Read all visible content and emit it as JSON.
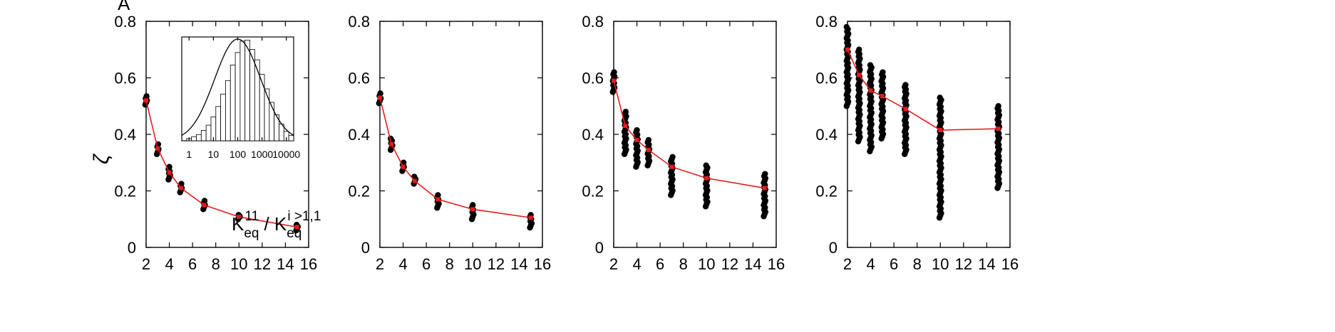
{
  "panel_letter": "A",
  "y_axis_label": "ζ",
  "colors": {
    "points": "#000000",
    "mean_line": "#e41a1c",
    "inset_bars": "#ffffff",
    "inset_curve": "#000000"
  },
  "chart_data": [
    {
      "type": "scatter",
      "title": "",
      "xlabel": "",
      "ylabel": "ζ",
      "xlim": [
        2,
        16
      ],
      "ylim": [
        0,
        0.8
      ],
      "xticks": [
        "2",
        "4",
        "6",
        "8",
        "10",
        "12",
        "14",
        "16"
      ],
      "yticks": [
        "0",
        "0.2",
        "0.4",
        "0.6",
        "0.8"
      ],
      "grid": false,
      "series": [
        {
          "x": [
            2,
            3,
            4,
            5,
            7,
            10,
            15
          ],
          "y_min": [
            0.505,
            0.33,
            0.24,
            0.195,
            0.135,
            0.1,
            0.06
          ],
          "y_max": [
            0.535,
            0.365,
            0.285,
            0.225,
            0.165,
            0.115,
            0.08
          ]
        },
        {
          "x": [
            2,
            3,
            4,
            5,
            7,
            10,
            15
          ],
          "y": [
            0.52,
            0.35,
            0.265,
            0.21,
            0.15,
            0.108,
            0.072
          ]
        }
      ],
      "inset": {
        "type": "bar",
        "xlabel": "K_eq^11 / K_eq^{i>1,1}",
        "xscale": "log",
        "xticks": [
          "1",
          "10",
          "100",
          "1000",
          "10000"
        ],
        "xlim": [
          0.5,
          20000
        ],
        "bins_log10_left": [
          -0.1,
          0.1,
          0.3,
          0.5,
          0.7,
          0.9,
          1.1,
          1.3,
          1.5,
          1.7,
          1.9,
          2.1,
          2.3,
          2.5,
          2.7,
          2.9,
          3.1,
          3.3,
          3.5,
          3.7,
          3.9,
          4.1
        ],
        "bin_width_log10": 0.2,
        "counts": [
          0.02,
          0.04,
          0.06,
          0.1,
          0.15,
          0.23,
          0.33,
          0.45,
          0.58,
          0.73,
          0.85,
          0.96,
          0.97,
          0.88,
          0.78,
          0.64,
          0.5,
          0.37,
          0.25,
          0.16,
          0.09,
          0.05
        ],
        "fit_center_log10": 2.0,
        "fit_sigma_log10": 0.95
      }
    },
    {
      "type": "scatter",
      "title": "",
      "xlabel": "",
      "ylabel": "",
      "xlim": [
        2,
        16
      ],
      "ylim": [
        0,
        0.8
      ],
      "xticks": [
        "2",
        "4",
        "6",
        "8",
        "10",
        "12",
        "14",
        "16"
      ],
      "yticks": [
        "0",
        "0.2",
        "0.4",
        "0.6",
        "0.8"
      ],
      "grid": false,
      "series": [
        {
          "x": [
            2,
            3,
            4,
            5,
            7,
            10,
            15
          ],
          "y_min": [
            0.51,
            0.345,
            0.27,
            0.225,
            0.14,
            0.1,
            0.07
          ],
          "y_max": [
            0.545,
            0.385,
            0.3,
            0.25,
            0.185,
            0.15,
            0.115
          ]
        },
        {
          "x": [
            2,
            3,
            4,
            5,
            7,
            10,
            15
          ],
          "y": [
            0.53,
            0.365,
            0.285,
            0.235,
            0.17,
            0.135,
            0.105
          ]
        }
      ]
    },
    {
      "type": "scatter",
      "title": "",
      "xlabel": "",
      "ylabel": "",
      "xlim": [
        2,
        16
      ],
      "ylim": [
        0,
        0.8
      ],
      "xticks": [
        "2",
        "4",
        "6",
        "8",
        "10",
        "12",
        "14",
        "16"
      ],
      "yticks": [
        "0",
        "0.2",
        "0.4",
        "0.6",
        "0.8"
      ],
      "grid": false,
      "series": [
        {
          "x": [
            2,
            3,
            4,
            5,
            7,
            10,
            15
          ],
          "y_min": [
            0.55,
            0.33,
            0.285,
            0.29,
            0.185,
            0.145,
            0.11
          ],
          "y_max": [
            0.62,
            0.48,
            0.415,
            0.38,
            0.32,
            0.29,
            0.26
          ]
        },
        {
          "x": [
            2,
            3,
            4,
            5,
            7,
            10,
            15
          ],
          "y": [
            0.59,
            0.43,
            0.38,
            0.345,
            0.285,
            0.245,
            0.21
          ]
        }
      ]
    },
    {
      "type": "scatter",
      "title": "",
      "xlabel": "",
      "ylabel": "",
      "xlim": [
        2,
        16
      ],
      "ylim": [
        0,
        0.8
      ],
      "xticks": [
        "2",
        "4",
        "6",
        "8",
        "10",
        "12",
        "14",
        "16"
      ],
      "yticks": [
        "0",
        "0.2",
        "0.4",
        "0.6",
        "0.8"
      ],
      "grid": false,
      "series": [
        {
          "x": [
            2,
            3,
            4,
            5,
            7,
            10,
            15
          ],
          "y_min": [
            0.5,
            0.375,
            0.34,
            0.385,
            0.33,
            0.105,
            0.21
          ],
          "y_max": [
            0.78,
            0.7,
            0.645,
            0.62,
            0.575,
            0.53,
            0.5
          ]
        },
        {
          "x": [
            2,
            3,
            4,
            5,
            7,
            10,
            15
          ],
          "y": [
            0.7,
            0.61,
            0.555,
            0.535,
            0.49,
            0.415,
            0.42
          ]
        }
      ]
    }
  ]
}
